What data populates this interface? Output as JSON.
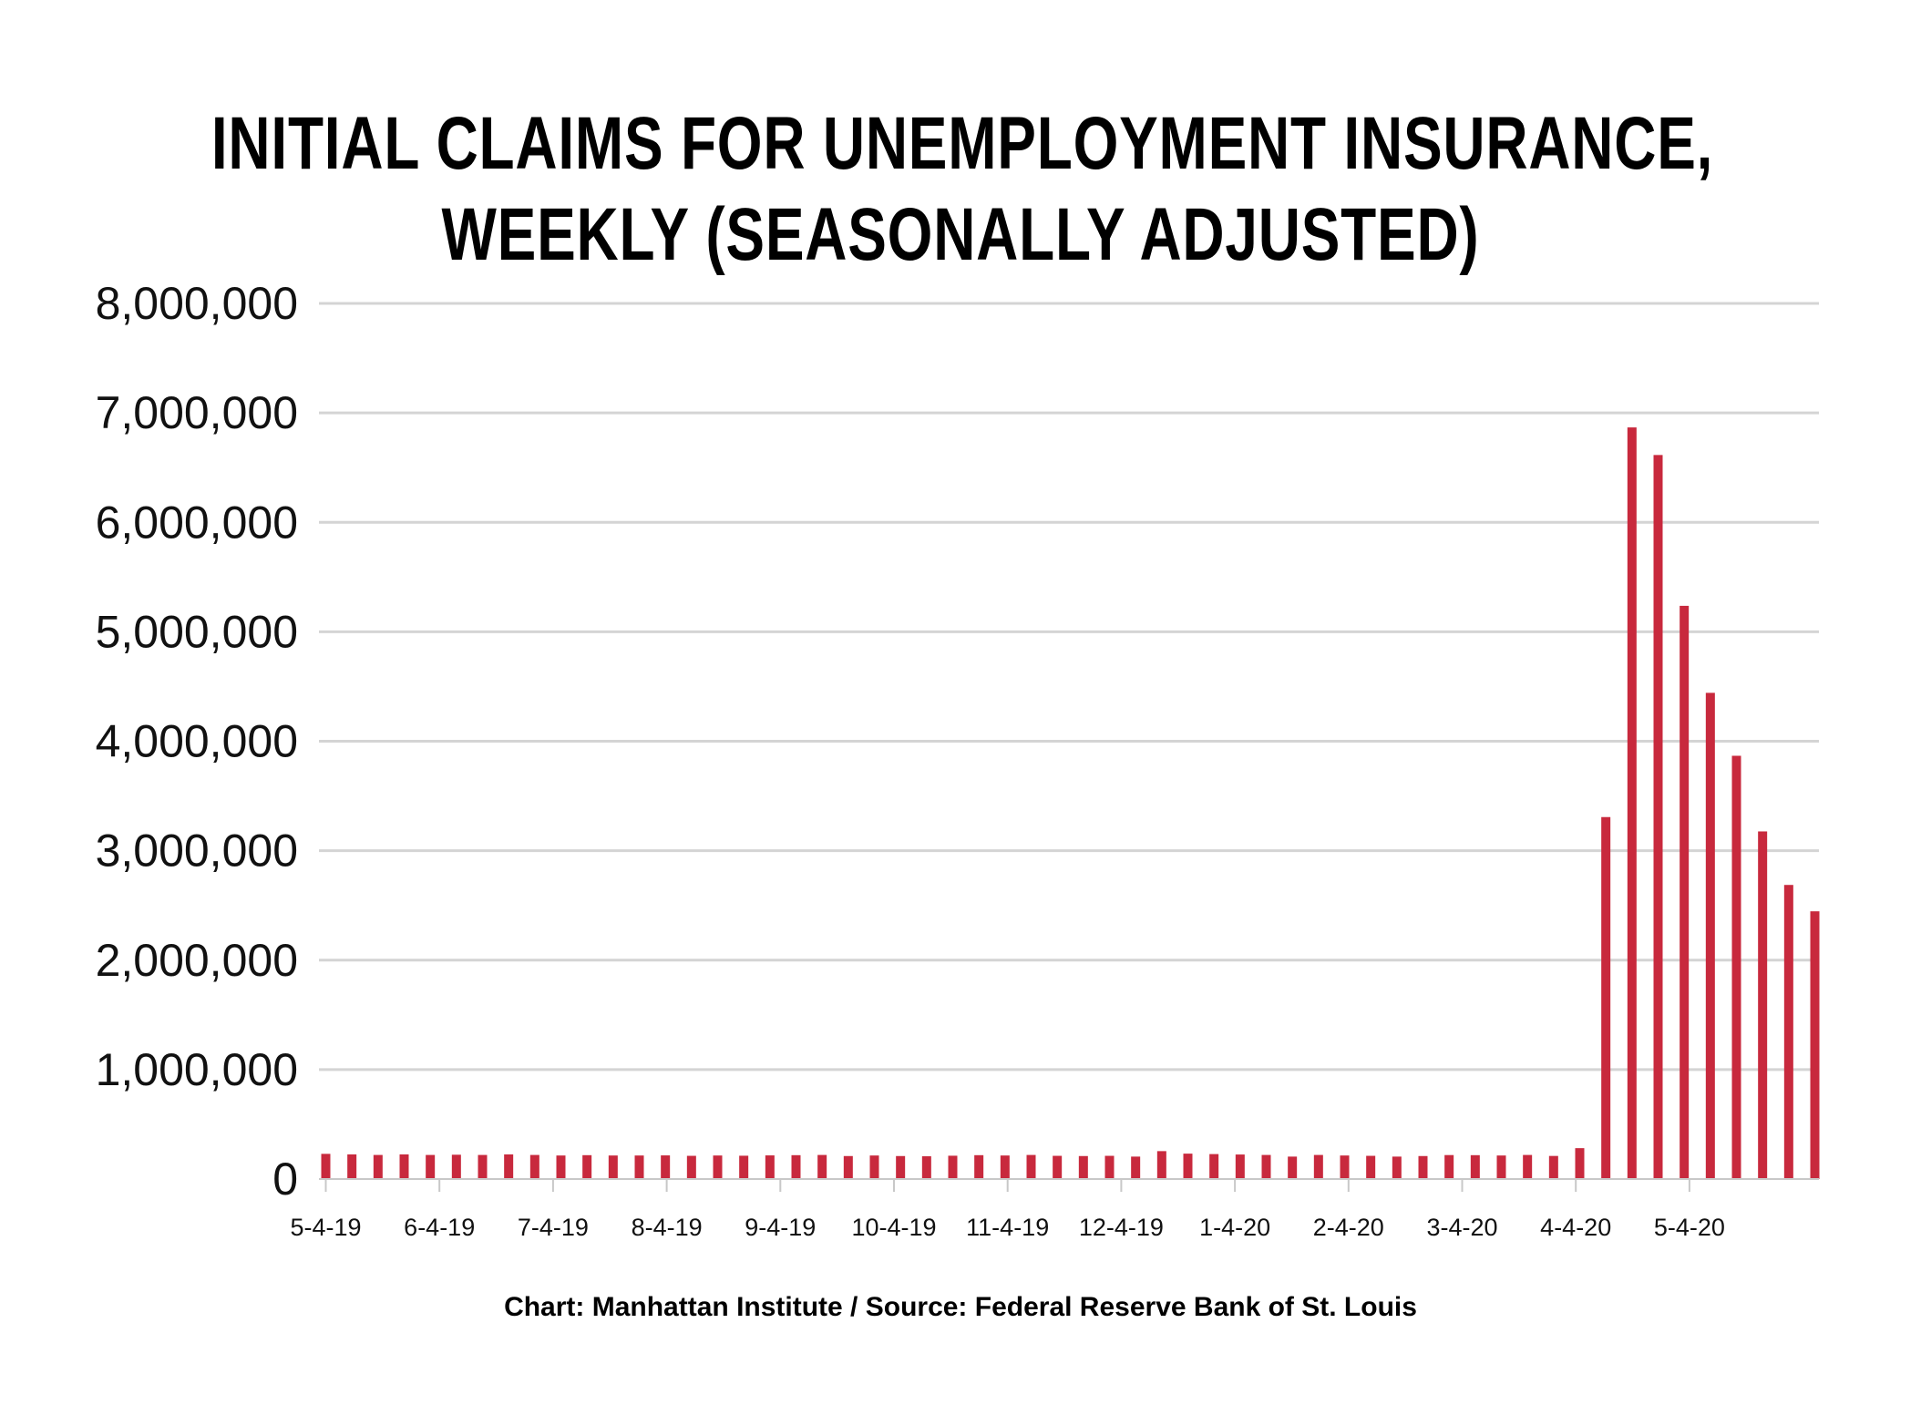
{
  "chart_data": {
    "type": "bar",
    "title_lines": [
      "INITIAL CLAIMS FOR UNEMPLOYMENT INSURANCE,",
      "WEEKLY (SEASONALLY ADJUSTED)"
    ],
    "xlabel": "",
    "ylabel": "",
    "ylim": [
      0,
      8000000
    ],
    "y_ticks": [
      0,
      1000000,
      2000000,
      3000000,
      4000000,
      5000000,
      6000000,
      7000000,
      8000000
    ],
    "y_tick_labels": [
      "0",
      "1,000,000",
      "2,000,000",
      "3,000,000",
      "4,000,000",
      "5,000,000",
      "6,000,000",
      "7,000,000",
      "8,000,000"
    ],
    "x_tick_labels": [
      "5-4-19",
      "6-4-19",
      "7-4-19",
      "8-4-19",
      "9-4-19",
      "10-4-19",
      "11-4-19",
      "12-4-19",
      "1-4-20",
      "2-4-20",
      "3-4-20",
      "4-4-20",
      "5-4-20"
    ],
    "grid": true,
    "bar_color": "#c8293d",
    "values": [
      230000,
      225000,
      220000,
      225000,
      220000,
      222000,
      220000,
      225000,
      220000,
      215000,
      218000,
      215000,
      215000,
      216000,
      212000,
      215000,
      213000,
      216000,
      218000,
      220000,
      210000,
      215000,
      210000,
      208000,
      213000,
      218000,
      215000,
      220000,
      212000,
      210000,
      212000,
      205000,
      255000,
      232000,
      228000,
      224000,
      220000,
      205000,
      220000,
      215000,
      212000,
      205000,
      210000,
      219000,
      218000,
      215000,
      220000,
      211000,
      282000,
      3307000,
      6867000,
      6615000,
      5237000,
      4442000,
      3867000,
      3176000,
      2687000,
      2446000
    ]
  },
  "footer": "Chart: Manhattan Institute  /  Source: Federal Reserve Bank of St. Louis"
}
